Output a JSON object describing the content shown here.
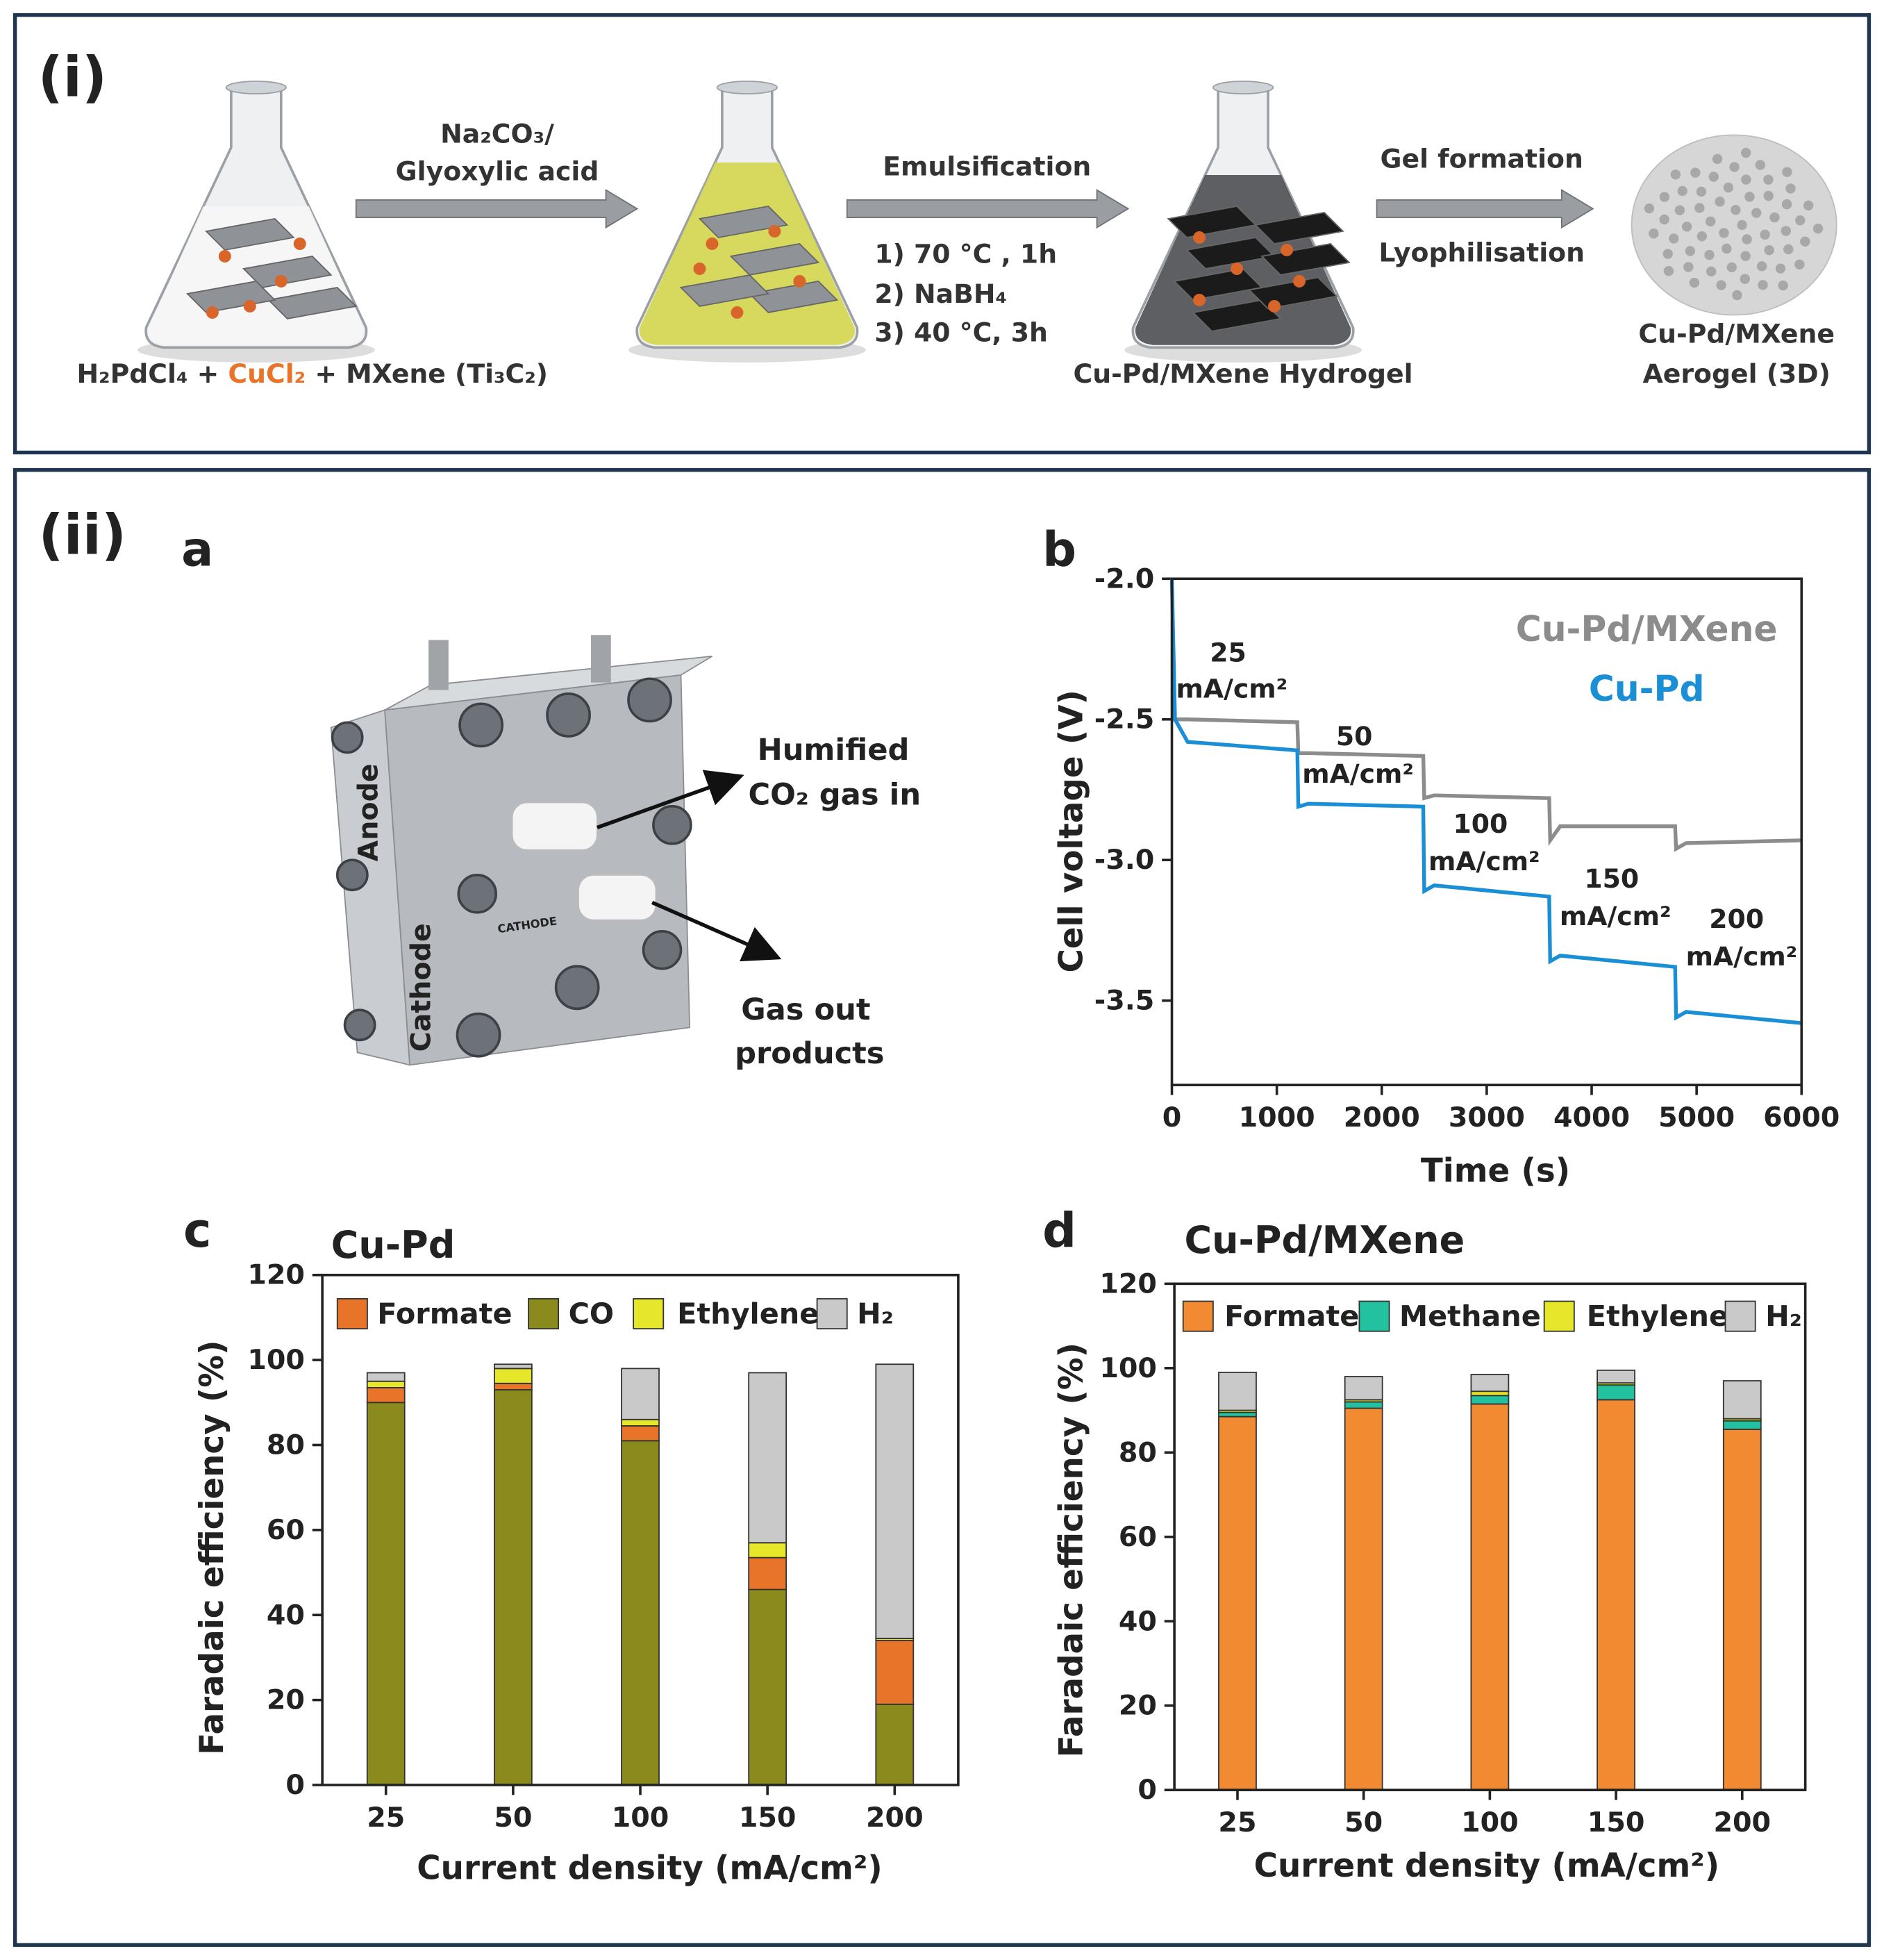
{
  "panel_i": {
    "label": "(i)",
    "reagents": [
      "H₂PdCl₄ + ",
      "CuCl₂",
      " + MXene (Ti₃C₂)"
    ],
    "step1": [
      "Na₂CO₃/",
      "Glyoxylic acid"
    ],
    "step2": {
      "title": "Emulsification",
      "conditions": [
        "1) 70 °C , 1h",
        "2) NaBH₄",
        "3) 40 °C, 3h"
      ]
    },
    "hydrogel": "Cu-Pd/MXene Hydrogel",
    "step3": [
      "Gel formation",
      "Lyophilisation"
    ],
    "aerogel": [
      "Cu-Pd/MXene",
      "Aerogel (3D)"
    ]
  },
  "panel_ii": {
    "label": "(ii)",
    "a": {
      "label": "a",
      "anode": "Anode",
      "cathode": "Cathode",
      "plate": "CATHODE",
      "inlet": [
        "Humified",
        "CO₂ gas in"
      ],
      "outlet": [
        "Gas out",
        "products"
      ]
    }
  },
  "chart_data": [
    {
      "panel": "b",
      "type": "line",
      "xlabel": "Time (s)",
      "ylabel": "Cell voltage (V)",
      "x": [
        0,
        30,
        150,
        1195,
        1205,
        1300,
        2395,
        2405,
        2500,
        3595,
        3605,
        3700,
        4795,
        4805,
        4900,
        6000
      ],
      "xlim": [
        0,
        6000
      ],
      "xticks": [
        0,
        1000,
        2000,
        3000,
        4000,
        5000,
        6000
      ],
      "ylim": [
        -3.8,
        -2.0
      ],
      "yticks": [
        {
          "value": -2,
          "label": "-2.0"
        },
        -2.5,
        {
          "value": -3,
          "label": "-3.0"
        },
        -3.5
      ],
      "series": [
        {
          "name": "Cu-Pd/MXene",
          "color": "#8c8c8c",
          "values": [
            -2.5,
            -2.5,
            -2.5,
            -2.51,
            -2.62,
            -2.62,
            -2.63,
            -2.78,
            -2.77,
            -2.78,
            -2.93,
            -2.88,
            -2.88,
            -2.96,
            -2.94,
            -2.93
          ]
        },
        {
          "name": "Cu-Pd",
          "color": "#1a8fd6",
          "values": [
            -2.0,
            -2.5,
            -2.58,
            -2.61,
            -2.81,
            -2.8,
            -2.81,
            -3.11,
            -3.09,
            -3.13,
            -3.36,
            -3.34,
            -3.38,
            -3.56,
            -3.54,
            -3.58
          ]
        }
      ],
      "annotations": [
        [
          "25",
          "mA/cm²"
        ],
        [
          "50",
          "mA/cm²"
        ],
        [
          "100",
          "mA/cm²"
        ],
        [
          "150",
          "mA/cm²"
        ],
        [
          "200",
          "mA/cm²"
        ]
      ]
    },
    {
      "panel": "c",
      "type": "bar",
      "stacked": true,
      "title": "Cu-Pd",
      "xlabel": "Current density (mA/cm²)",
      "ylabel": "Faradaic efficiency (%)",
      "categories": [
        "25",
        "50",
        "100",
        "150",
        "200"
      ],
      "ylim": [
        0,
        120
      ],
      "yticks": [
        0,
        20,
        40,
        60,
        80,
        100,
        120
      ],
      "series": [
        {
          "name": "Formate",
          "color": "#e8742a",
          "values": [
            3.5,
            1.5,
            3.5,
            7.5,
            15
          ]
        },
        {
          "name": "CO",
          "color": "#8b8a1c",
          "values": [
            90,
            93,
            81,
            46,
            19
          ]
        },
        {
          "name": "Ethylene",
          "color": "#e6e62a",
          "values": [
            1.5,
            3.5,
            1.5,
            3.5,
            0.5
          ]
        },
        {
          "name": "H₂",
          "color": "#c9c9c9",
          "values": [
            2,
            1,
            12,
            40,
            64.5
          ]
        }
      ]
    },
    {
      "panel": "d",
      "type": "bar",
      "stacked": true,
      "title": "Cu-Pd/MXene",
      "xlabel": "Current density (mA/cm²)",
      "ylabel": "Faradaic efficiency (%)",
      "categories": [
        "25",
        "50",
        "100",
        "150",
        "200"
      ],
      "ylim": [
        0,
        120
      ],
      "yticks": [
        0,
        20,
        40,
        60,
        80,
        100,
        120
      ],
      "series": [
        {
          "name": "Formate",
          "color": "#f28a32",
          "values": [
            88.5,
            90.5,
            91.5,
            92.5,
            85.5
          ]
        },
        {
          "name": "Methane",
          "color": "#22c1a0",
          "values": [
            1,
            1.5,
            2,
            3.5,
            2
          ]
        },
        {
          "name": "Ethylene",
          "color": "#e6e62a",
          "values": [
            0.5,
            0.5,
            1,
            0.5,
            0.5
          ]
        },
        {
          "name": "H₂",
          "color": "#c9c9c9",
          "values": [
            9,
            5.5,
            4,
            3,
            9
          ]
        }
      ]
    }
  ]
}
